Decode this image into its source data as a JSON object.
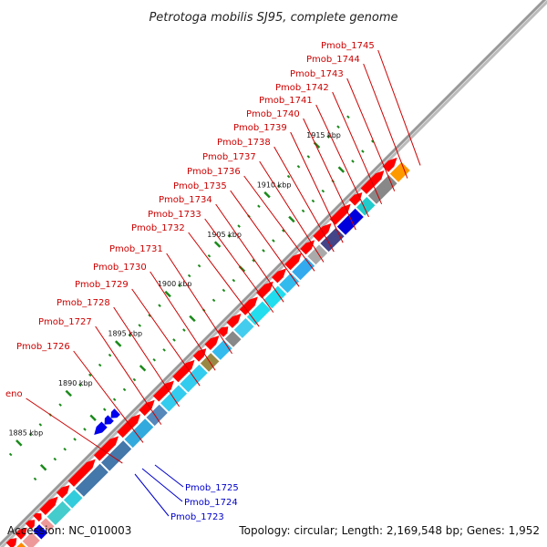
{
  "title": "Petrotoga mobilis SJ95, complete genome",
  "footer": {
    "accession": "Accession: NC_010003",
    "info": "Topology: circular; Length: 2,169,548 bp; Genes: 1,952"
  },
  "colors": {
    "backbone": "#888888",
    "cds_forward": "#ff0000",
    "cds_reverse": "#0000ee",
    "tick": "#1a8a1a",
    "label_forward": "#cc0000",
    "label_reverse": "#0000cc"
  },
  "scale": {
    "unit": "kbp",
    "major_ticks": [
      {
        "kbp": 1885,
        "label": "1885 kbp"
      },
      {
        "kbp": 1890,
        "label": "1890 kbp"
      },
      {
        "kbp": 1895,
        "label": "1895 kbp"
      },
      {
        "kbp": 1900,
        "label": "1900 kbp"
      },
      {
        "kbp": 1905,
        "label": "1905 kbp"
      },
      {
        "kbp": 1910,
        "label": "1910 kbp"
      },
      {
        "kbp": 1915,
        "label": "1915 kbp"
      }
    ]
  },
  "gene_labels_forward": [
    "eno",
    "Pmob_1726",
    "Pmob_1727",
    "Pmob_1728",
    "Pmob_1729",
    "Pmob_1730",
    "Pmob_1731",
    "Pmob_1732",
    "Pmob_1733",
    "Pmob_1734",
    "Pmob_1735",
    "Pmob_1736",
    "Pmob_1737",
    "Pmob_1738",
    "Pmob_1739",
    "Pmob_1740",
    "Pmob_1741",
    "Pmob_1742",
    "Pmob_1743",
    "Pmob_1744",
    "Pmob_1745"
  ],
  "gene_labels_reverse": [
    "Pmob_1725",
    "Pmob_1724",
    "Pmob_1723"
  ],
  "cog_colors": [
    "#ff8800",
    "#ee9999",
    "#0000dd",
    "#ee9999",
    "#44cccc",
    "#33ccdd",
    "#4477aa",
    "#4477aa",
    "#33aadd",
    "#5588bb",
    "#33ccee",
    "#33ccee",
    "#998844",
    "#33bbee",
    "#888888",
    "#44ccee",
    "#22ddee",
    "#22ddee",
    "#33bbee",
    "#33aaee",
    "#aaaaaa",
    "#444488",
    "#0000dd",
    "#22cccc",
    "#888888",
    "#ff9900"
  ]
}
